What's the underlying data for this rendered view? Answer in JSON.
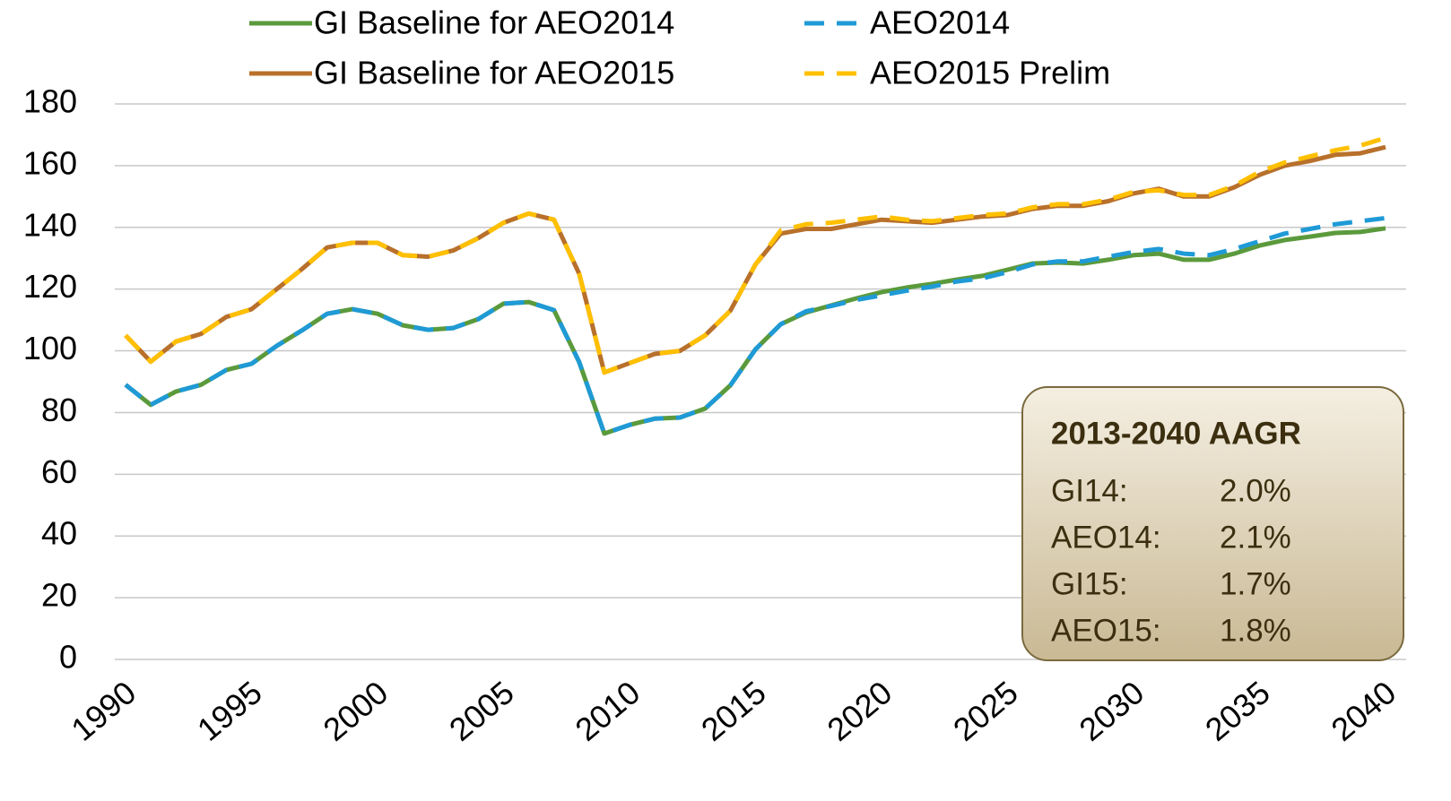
{
  "chart_data": {
    "type": "line",
    "x": [
      1990,
      1991,
      1992,
      1993,
      1994,
      1995,
      1996,
      1997,
      1998,
      1999,
      2000,
      2001,
      2002,
      2003,
      2004,
      2005,
      2006,
      2007,
      2008,
      2009,
      2010,
      2011,
      2012,
      2013,
      2014,
      2015,
      2016,
      2017,
      2018,
      2019,
      2020,
      2021,
      2022,
      2023,
      2024,
      2025,
      2026,
      2027,
      2028,
      2029,
      2030,
      2031,
      2032,
      2033,
      2034,
      2035,
      2036,
      2037,
      2038,
      2039,
      2040
    ],
    "series": [
      {
        "name": "GI Baseline for AEO2014",
        "color": "#5b9a3c",
        "dashed": false,
        "values": [
          89,
          82.5,
          86.8,
          89,
          93.8,
          95.8,
          101.6,
          106.6,
          112,
          113.5,
          112,
          108.3,
          106.8,
          107.4,
          110.3,
          115.3,
          115.8,
          113.2,
          96.4,
          73.2,
          76,
          78,
          78.4,
          81.3,
          88.8,
          100.5,
          108.6,
          112.4,
          114.7,
          117,
          119,
          120.5,
          121.7,
          123.1,
          124.3,
          126.3,
          128.3,
          128.6,
          128.3,
          129.5,
          131,
          131.5,
          129.5,
          129.5,
          131.5,
          134.1,
          135.9,
          137,
          138.2,
          138.5,
          139.7
        ]
      },
      {
        "name": "AEO2014",
        "color": "#1f9ad6",
        "dashed": true,
        "values": [
          89,
          82.5,
          86.8,
          89,
          93.8,
          95.8,
          101.6,
          106.6,
          112,
          113.5,
          112,
          108.3,
          106.8,
          107.4,
          110.3,
          115.3,
          115.8,
          113.2,
          96.4,
          73.2,
          76,
          78,
          78.4,
          81.3,
          88.8,
          100.5,
          108.6,
          112.8,
          114.5,
          116.5,
          118,
          119.5,
          120.8,
          122.5,
          123.5,
          125.5,
          128,
          129,
          129,
          130.5,
          132,
          133,
          131.5,
          131,
          133,
          135.5,
          138,
          139.5,
          141,
          142,
          143
        ]
      },
      {
        "name": "GI Baseline for AEO2015",
        "color": "#b8702b",
        "dashed": false,
        "values": [
          105,
          96.5,
          103,
          105.5,
          111,
          113.5,
          120,
          126.5,
          133.5,
          135,
          135,
          131,
          130.5,
          132.5,
          136.5,
          141.5,
          144.5,
          142.5,
          125,
          93,
          96,
          99,
          100,
          105,
          113,
          128,
          138,
          139.5,
          139.5,
          141,
          142.5,
          142,
          141.5,
          142.5,
          143.5,
          144,
          146,
          147,
          147,
          148.5,
          151,
          152.5,
          150,
          150,
          153,
          157,
          160,
          161.5,
          163.5,
          164,
          166
        ]
      },
      {
        "name": "AEO2015 Prelim",
        "color": "#ffc000",
        "dashed": true,
        "values": [
          105,
          96.5,
          103,
          105.5,
          111,
          113.5,
          120,
          126.5,
          133.5,
          135,
          135,
          131,
          130.5,
          132.5,
          136.5,
          141.5,
          144.5,
          142.5,
          125,
          93,
          96,
          99,
          100,
          105,
          113,
          128,
          139,
          141,
          141.5,
          142.5,
          143.5,
          142.5,
          142,
          143,
          144,
          144.5,
          146.5,
          147.5,
          147.5,
          149,
          151.5,
          152,
          150.5,
          150.5,
          153.5,
          158,
          161,
          163,
          165,
          166.5,
          169
        ]
      }
    ],
    "xlim": [
      1990,
      2040
    ],
    "xticks": [
      1990,
      1995,
      2000,
      2005,
      2010,
      2015,
      2020,
      2025,
      2030,
      2035,
      2040
    ],
    "ylim": [
      0,
      180
    ],
    "yticks": [
      0,
      20,
      40,
      60,
      80,
      100,
      120,
      140,
      160,
      180
    ],
    "grid": true,
    "legend": "top",
    "annotation": {
      "title": "2013-2040 AAGR",
      "rows": [
        [
          "GI14:",
          "2.0%"
        ],
        [
          "AEO14:",
          "2.1%"
        ],
        [
          "GI15:",
          "1.7%"
        ],
        [
          "AEO15:",
          "1.8%"
        ]
      ]
    }
  }
}
